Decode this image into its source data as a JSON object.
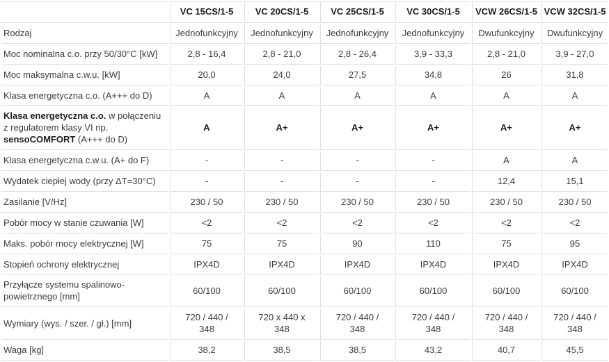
{
  "table": {
    "columns": [
      "VC 15CS/1-5",
      "VC 20CS/1-5",
      "VC 25CS/1-5",
      "VC 30CS/1-5",
      "VCW 26CS/1-5",
      "VCW 32CS/1-5"
    ],
    "rows": [
      {
        "label": "Rodzaj",
        "values": [
          "Jednofunkcyjny",
          "Jednofunkcyjny",
          "Jednofunkcyjny",
          "Jednofunkcyjny",
          "Dwufunkcyjny",
          "Dwufunkcyjny"
        ]
      },
      {
        "label": "Moc nominalna c.o. przy 50/30°C [kW]",
        "values": [
          "2,8 - 16,4",
          "2,8 - 21,0",
          "2,8 - 26,4",
          "3,9 - 33,3",
          "2,8 - 21,0",
          "3,9 - 27,0"
        ]
      },
      {
        "label": "Moc maksymalna c.w.u. [kW]",
        "values": [
          "20,0",
          "24,0",
          "27,5",
          "34,8",
          "26",
          "31,8"
        ]
      },
      {
        "label": "Klasa energetyczna c.o. (A+++ do D)",
        "values": [
          "A",
          "A",
          "A",
          "A",
          "A",
          "A"
        ]
      },
      {
        "label_segments": [
          {
            "text": "Klasa energetyczna c.o.",
            "bold": true
          },
          {
            "text": " w połączeniu z regulatorem klasy VI np. ",
            "bold": false
          },
          {
            "text": "sensoCOMFORT",
            "bold": true
          },
          {
            "text": " (A+++ do D)",
            "bold": false
          }
        ],
        "bold_values": true,
        "values": [
          "A",
          "A+",
          "A+",
          "A+",
          "A+",
          "A+"
        ]
      },
      {
        "label": "Klasa energetyczna c.w.u. (A+ do F)",
        "values": [
          "-",
          "-",
          "-",
          "-",
          "A",
          "A"
        ]
      },
      {
        "label": "Wydatek ciepłej wody (przy ΔT=30°C)",
        "values": [
          "-",
          "-",
          "-",
          "-",
          "12,4",
          "15,1"
        ]
      },
      {
        "label": "Zasilanie [V/Hz]",
        "values": [
          "230 / 50",
          "230 / 50",
          "230 / 50",
          "230 / 50",
          "230 / 50",
          "230 / 50"
        ]
      },
      {
        "label": "Pobór mocy w stanie czuwania [W]",
        "values": [
          "<2",
          "<2",
          "<2",
          "<2",
          "<2",
          "<2"
        ]
      },
      {
        "label": "Maks. pobór mocy elektrycznej [W]",
        "values": [
          "75",
          "75",
          "90",
          "110",
          "75",
          "95"
        ]
      },
      {
        "label": "Stopień ochrony elektrycznej",
        "values": [
          "IPX4D",
          "IPX4D",
          "IPX4D",
          "IPX4D",
          "IPX4D",
          "IPX4D"
        ]
      },
      {
        "label": "Przyłącze systemu spalinowo-powietrznego [mm]",
        "values": [
          "60/100",
          "60/100",
          "60/100",
          "60/100",
          "60/100",
          "60/100"
        ]
      },
      {
        "label": "Wymiary (wys. / szer. / gł.) [mm]",
        "values": [
          "720 / 440 / 348",
          "720 x 440 x 348",
          "720 / 440 / 348",
          "720 / 440 / 348",
          "720 / 440 / 348",
          "720 / 440 / 348"
        ]
      },
      {
        "label": "Waga [kg]",
        "values": [
          "38,2",
          "38,5",
          "38,5",
          "43,2",
          "40,7",
          "45,5"
        ]
      }
    ]
  }
}
